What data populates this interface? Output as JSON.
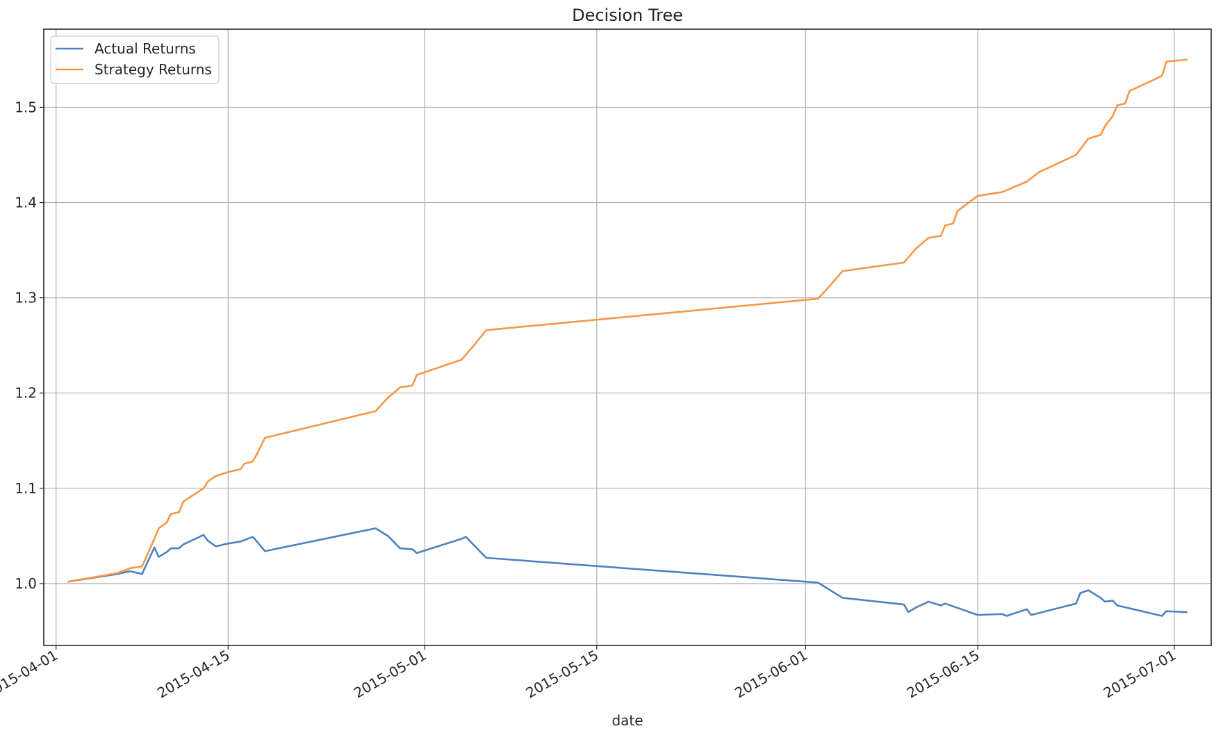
{
  "chart_data": {
    "type": "line",
    "title": "Decision Tree",
    "xlabel": "date",
    "ylabel": "",
    "xlim": [
      "2015-03-31",
      "2015-07-04"
    ],
    "ylim": [
      0.935,
      1.582
    ],
    "x_ticks": [
      "2015-04-01",
      "2015-04-15",
      "2015-05-01",
      "2015-05-15",
      "2015-06-01",
      "2015-06-15",
      "2015-07-01"
    ],
    "y_ticks": [
      1.0,
      1.1,
      1.2,
      1.3,
      1.4,
      1.5
    ],
    "y_tick_labels": [
      "1.0",
      "1.1",
      "1.2",
      "1.3",
      "1.4",
      "1.5"
    ],
    "grid": true,
    "legend_position": "top-left",
    "series": [
      {
        "name": "Actual Returns",
        "color": "#4f81bd",
        "points": [
          [
            "2015-04-02",
            1.002
          ],
          [
            "2015-04-06",
            1.01
          ],
          [
            "2015-04-07",
            1.013
          ],
          [
            "2015-04-08",
            1.01
          ],
          [
            "2015-04-09",
            1.038
          ],
          [
            "2015-04-09",
            1.028
          ],
          [
            "2015-04-10",
            1.033
          ],
          [
            "2015-04-10",
            1.037
          ],
          [
            "2015-04-11",
            1.037
          ],
          [
            "2015-04-11",
            1.041
          ],
          [
            "2015-04-13",
            1.051
          ],
          [
            "2015-04-13",
            1.045
          ],
          [
            "2015-04-14",
            1.039
          ],
          [
            "2015-04-15",
            1.042
          ],
          [
            "2015-04-16",
            1.044
          ],
          [
            "2015-04-17",
            1.049
          ],
          [
            "2015-04-17",
            1.044
          ],
          [
            "2015-04-18",
            1.034
          ],
          [
            "2015-04-27",
            1.058
          ],
          [
            "2015-04-28",
            1.05
          ],
          [
            "2015-04-29",
            1.037
          ],
          [
            "2015-04-30",
            1.036
          ],
          [
            "2015-04-30",
            1.032
          ],
          [
            "2015-05-04",
            1.047
          ],
          [
            "2015-05-04",
            1.049
          ],
          [
            "2015-05-06",
            1.027
          ],
          [
            "2015-06-02",
            1.001
          ],
          [
            "2015-06-03",
            0.993
          ],
          [
            "2015-06-04",
            0.985
          ],
          [
            "2015-06-09",
            0.978
          ],
          [
            "2015-06-09",
            0.97
          ],
          [
            "2015-06-10",
            0.975
          ],
          [
            "2015-06-11",
            0.981
          ],
          [
            "2015-06-12",
            0.977
          ],
          [
            "2015-06-12",
            0.979
          ],
          [
            "2015-06-15",
            0.967
          ],
          [
            "2015-06-17",
            0.968
          ],
          [
            "2015-06-17",
            0.966
          ],
          [
            "2015-06-19",
            0.973
          ],
          [
            "2015-06-19",
            0.967
          ],
          [
            "2015-06-23",
            0.979
          ],
          [
            "2015-06-23",
            0.99
          ],
          [
            "2015-06-24",
            0.993
          ],
          [
            "2015-06-25",
            0.985
          ],
          [
            "2015-06-25",
            0.981
          ],
          [
            "2015-06-26",
            0.982
          ],
          [
            "2015-06-26",
            0.977
          ],
          [
            "2015-06-30",
            0.966
          ],
          [
            "2015-06-30",
            0.971
          ],
          [
            "2015-07-02",
            0.97
          ]
        ]
      },
      {
        "name": "Strategy Returns",
        "color": "#f79646",
        "points": [
          [
            "2015-04-02",
            1.002
          ],
          [
            "2015-04-06",
            1.011
          ],
          [
            "2015-04-07",
            1.016
          ],
          [
            "2015-04-08",
            1.018
          ],
          [
            "2015-04-09",
            1.047
          ],
          [
            "2015-04-09",
            1.058
          ],
          [
            "2015-04-10",
            1.064
          ],
          [
            "2015-04-10",
            1.073
          ],
          [
            "2015-04-11",
            1.075
          ],
          [
            "2015-04-11",
            1.086
          ],
          [
            "2015-04-13",
            1.1
          ],
          [
            "2015-04-13",
            1.107
          ],
          [
            "2015-04-14",
            1.113
          ],
          [
            "2015-04-15",
            1.117
          ],
          [
            "2015-04-16",
            1.12
          ],
          [
            "2015-04-16",
            1.126
          ],
          [
            "2015-04-17",
            1.128
          ],
          [
            "2015-04-17",
            1.136
          ],
          [
            "2015-04-18",
            1.153
          ],
          [
            "2015-04-27",
            1.181
          ],
          [
            "2015-04-28",
            1.195
          ],
          [
            "2015-04-29",
            1.206
          ],
          [
            "2015-04-30",
            1.208
          ],
          [
            "2015-04-30",
            1.219
          ],
          [
            "2015-05-04",
            1.235
          ],
          [
            "2015-05-05",
            1.25
          ],
          [
            "2015-05-06",
            1.266
          ],
          [
            "2015-06-02",
            1.299
          ],
          [
            "2015-06-03",
            1.313
          ],
          [
            "2015-06-04",
            1.328
          ],
          [
            "2015-06-09",
            1.337
          ],
          [
            "2015-06-10",
            1.352
          ],
          [
            "2015-06-11",
            1.363
          ],
          [
            "2015-06-12",
            1.365
          ],
          [
            "2015-06-12",
            1.376
          ],
          [
            "2015-06-13",
            1.378
          ],
          [
            "2015-06-13",
            1.391
          ],
          [
            "2015-06-15",
            1.407
          ],
          [
            "2015-06-17",
            1.411
          ],
          [
            "2015-06-19",
            1.422
          ],
          [
            "2015-06-20",
            1.432
          ],
          [
            "2015-06-23",
            1.45
          ],
          [
            "2015-06-24",
            1.467
          ],
          [
            "2015-06-25",
            1.471
          ],
          [
            "2015-06-25",
            1.48
          ],
          [
            "2015-06-26",
            1.491
          ],
          [
            "2015-06-26",
            1.502
          ],
          [
            "2015-06-27",
            1.504
          ],
          [
            "2015-06-27",
            1.517
          ],
          [
            "2015-06-30",
            1.533
          ],
          [
            "2015-06-30",
            1.548
          ],
          [
            "2015-07-02",
            1.55
          ]
        ]
      }
    ]
  }
}
